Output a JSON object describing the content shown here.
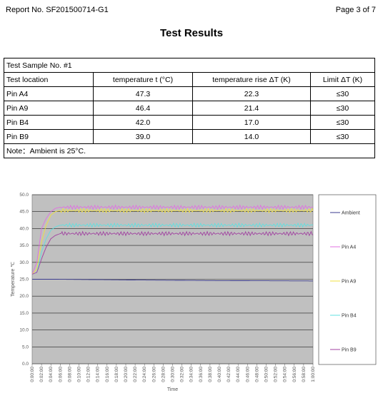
{
  "header": {
    "report_no": "Report No. SF201500714-G1",
    "page": "Page 3 of 7"
  },
  "title": "Test Results",
  "table": {
    "sample": "Test Sample No. #1",
    "columns": [
      "Test location",
      "temperature t (°C)",
      "temperature rise ΔT (K)",
      "Limit ΔT (K)"
    ],
    "rows": [
      [
        "Pin A4",
        "47.3",
        "22.3",
        "≤30"
      ],
      [
        "Pin A9",
        "46.4",
        "21.4",
        "≤30"
      ],
      [
        "Pin B4",
        "42.0",
        "17.0",
        "≤30"
      ],
      [
        "Pin B9",
        "39.0",
        "14.0",
        "≤30"
      ]
    ],
    "note": "Note：Ambient is 25°C."
  },
  "chart_data": {
    "type": "line",
    "xlabel": "Time",
    "ylabel": "Temperature ℃",
    "ylim": [
      0,
      50
    ],
    "yticks": [
      "0.0",
      "5.0",
      "10.0",
      "15.0",
      "20.0",
      "25.0",
      "30.0",
      "35.0",
      "40.0",
      "45.0",
      "50.0"
    ],
    "xticks": [
      "0:00:00",
      "0:02:00",
      "0:04:00",
      "0:06:00",
      "0:08:00",
      "0:10:00",
      "0:12:00",
      "0:14:00",
      "0:16:00",
      "0:18:00",
      "0:20:00",
      "0:22:00",
      "0:24:00",
      "0:26:00",
      "0:28:00",
      "0:30:00",
      "0:32:00",
      "0:34:00",
      "0:36:00",
      "0:38:00",
      "0:40:00",
      "0:42:00",
      "0:44:00",
      "0:46:00",
      "0:48:00",
      "0:50:00",
      "0:52:00",
      "0:54:00",
      "0:56:00",
      "0:58:00",
      "1:00:00"
    ],
    "grid": true,
    "legend_position": "right",
    "series": [
      {
        "name": "Ambient",
        "color": "#3b3b8f",
        "x_min": [
          0,
          5,
          20,
          40,
          60
        ],
        "values": [
          25.0,
          25.0,
          24.8,
          24.6,
          24.5
        ]
      },
      {
        "name": "Pin A4",
        "color": "#e070e0",
        "x_min": [
          0,
          1,
          2,
          3,
          4,
          5,
          6,
          60
        ],
        "values": [
          26.5,
          30,
          40,
          43,
          45,
          46,
          46.3,
          46.3
        ]
      },
      {
        "name": "Pin A9",
        "color": "#f0e040",
        "x_min": [
          0,
          1,
          2,
          3,
          4,
          5,
          6,
          60
        ],
        "values": [
          26.5,
          28,
          36,
          41,
          44,
          45,
          45.3,
          45.3
        ]
      },
      {
        "name": "Pin B4",
        "color": "#60e0e0",
        "x_min": [
          0,
          1,
          2,
          3,
          4,
          5,
          6,
          60
        ],
        "values": [
          26.5,
          27,
          33,
          37,
          39.5,
          40.5,
          41,
          41
        ]
      },
      {
        "name": "Pin B9",
        "color": "#a040a0",
        "x_min": [
          0,
          1,
          2,
          3,
          4,
          5,
          6,
          60
        ],
        "values": [
          26.5,
          27,
          31,
          34.5,
          37,
          38,
          38.5,
          38.5
        ]
      }
    ]
  }
}
